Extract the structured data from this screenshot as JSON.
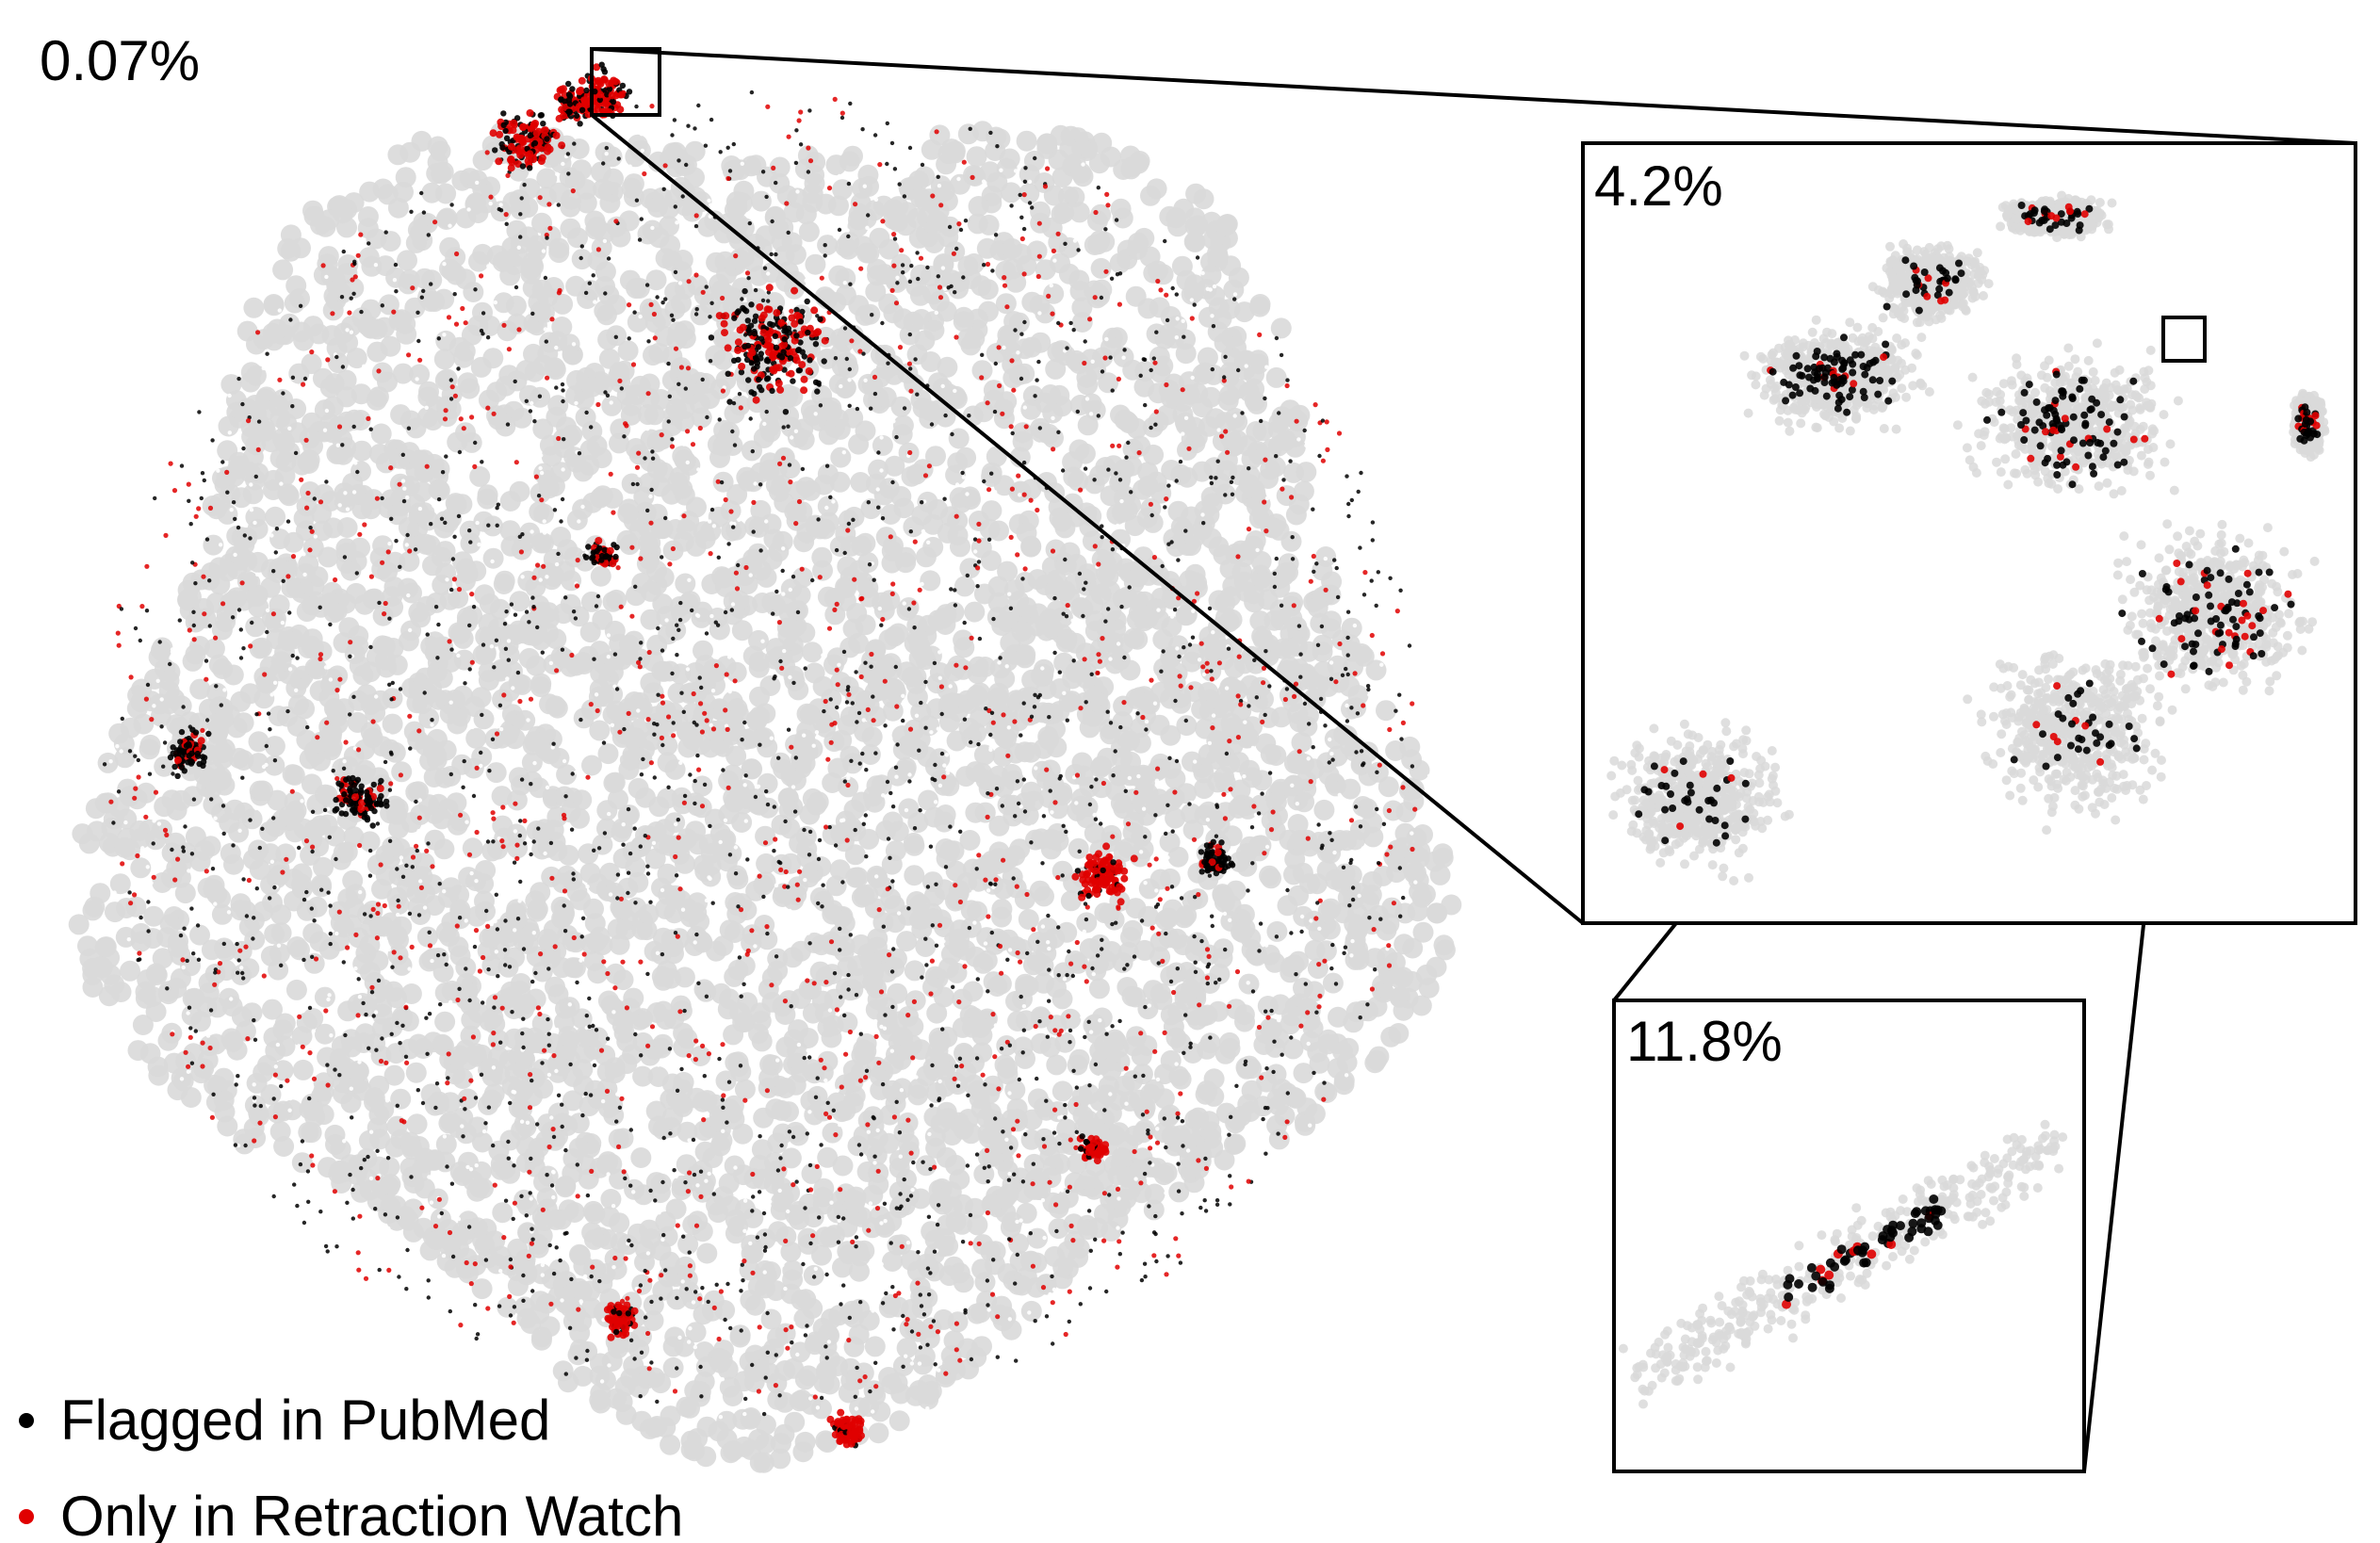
{
  "chart_data": [
    {
      "type": "scatter",
      "panel": "main",
      "annotation": "0.07%",
      "series": [
        {
          "name": "Flagged in PubMed",
          "color": "#000000"
        },
        {
          "name": "Only in Retraction Watch",
          "color": "#e00000"
        }
      ],
      "background_color": "#d9d9d9"
    },
    {
      "type": "scatter",
      "panel": "zoom-1",
      "annotation": "4.2%",
      "background_color": "#d9d9d9"
    },
    {
      "type": "scatter",
      "panel": "zoom-2",
      "annotation": "11.8%",
      "background_color": "#d9d9d9"
    }
  ],
  "legend": {
    "items": [
      {
        "label": "Flagged in PubMed",
        "color": "#000000"
      },
      {
        "label": "Only in Retraction Watch",
        "color": "#e00000"
      }
    ]
  },
  "colors": {
    "background_points": "#d9d9d9",
    "flagged": "#000000",
    "retraction_only": "#e00000"
  }
}
